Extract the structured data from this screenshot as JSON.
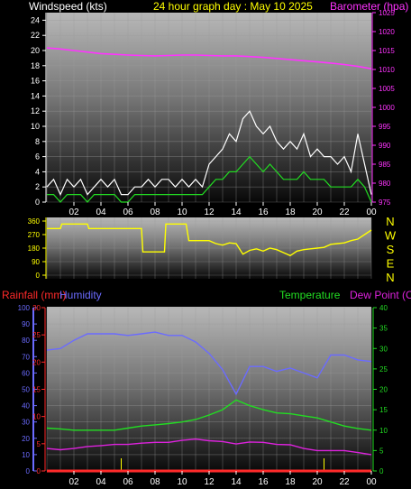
{
  "colors": {
    "wind_label": "#ffffff",
    "title": "#ffff00",
    "baro": "#ff33ff",
    "wind_dir": "#ffff00",
    "rain": "#ff2a2a",
    "humidity": "#6b6bff",
    "temperature": "#22dd22",
    "dewpoint": "#dd22dd",
    "gust": "#ffffff",
    "avg_wind": "#22dd22",
    "axis_left_wind": "#ffffff"
  },
  "header": {
    "wind_title": "Windspeed (kts)",
    "graph_title": "24 hour graph day : May 10 2025",
    "baro_title": "Barometer (hpa)"
  },
  "wind_dir_letters": [
    "N",
    "W",
    "S",
    "E",
    "N"
  ],
  "bottom_header": {
    "rain_title": "Rainfall (mm)",
    "humidity_title": "Humidity",
    "temp_title": "Temperature",
    "dew_title": "Dew Point (C)"
  },
  "chart_data": [
    {
      "type": "line",
      "title": "24 hour graph day : May 10 2025",
      "xlabel": "",
      "x_ticks": [
        "02",
        "04",
        "06",
        "08",
        "10",
        "12",
        "14",
        "16",
        "18",
        "20",
        "22",
        "00"
      ],
      "x_range_hours": [
        0,
        24
      ],
      "y_left": {
        "label": "Windspeed (kts)",
        "ylim": [
          0,
          25
        ],
        "ticks": [
          0,
          2,
          4,
          6,
          8,
          10,
          12,
          14,
          16,
          18,
          20,
          22,
          24
        ]
      },
      "y_right": {
        "label": "Barometer (hpa)",
        "ylim": [
          975,
          1025
        ],
        "ticks": [
          975,
          980,
          985,
          990,
          995,
          1000,
          1005,
          1010,
          1015,
          1020,
          1025
        ]
      },
      "grid": true,
      "series": [
        {
          "name": "Barometer (hpa)",
          "axis": "right",
          "color": "#ff33ff",
          "x": [
            0,
            1,
            2,
            3,
            4,
            5,
            6,
            7,
            8,
            9,
            10,
            11,
            12,
            13,
            14,
            15,
            16,
            17,
            18,
            19,
            20,
            21,
            22,
            23,
            24
          ],
          "values": [
            1015.7,
            1015.4,
            1015,
            1014.6,
            1014.2,
            1014,
            1013.8,
            1013.7,
            1013.6,
            1013.7,
            1013.8,
            1013.8,
            1013.7,
            1013.6,
            1013.6,
            1013.4,
            1013.2,
            1012.9,
            1012.6,
            1012.3,
            1012,
            1011.7,
            1011.3,
            1010.8,
            1010.2
          ]
        },
        {
          "name": "Gust",
          "axis": "left",
          "color": "#ffffff",
          "x": [
            0,
            0.5,
            1,
            1.5,
            2,
            2.5,
            3,
            3.5,
            4,
            4.5,
            5,
            5.5,
            6,
            6.5,
            7,
            7.5,
            8,
            8.5,
            9,
            9.5,
            10,
            10.5,
            11,
            11.5,
            12,
            12.5,
            13,
            13.5,
            14,
            14.5,
            15,
            15.5,
            16,
            16.5,
            17,
            17.5,
            18,
            18.5,
            19,
            19.5,
            20,
            20.5,
            21,
            21.5,
            22,
            22.5,
            23,
            23.5,
            24
          ],
          "values": [
            2,
            3,
            1,
            3,
            2,
            3,
            1,
            2,
            3,
            2,
            3,
            1,
            1,
            2,
            2,
            3,
            2,
            3,
            3,
            2,
            3,
            2,
            3,
            2,
            5,
            6,
            7,
            9,
            8,
            11,
            12,
            10,
            9,
            10,
            8,
            7,
            8,
            7,
            9,
            6,
            7,
            6,
            6,
            5,
            6,
            4,
            9,
            5,
            1
          ]
        },
        {
          "name": "Average Wind",
          "axis": "left",
          "color": "#22dd22",
          "x": [
            0,
            0.5,
            1,
            1.5,
            2,
            2.5,
            3,
            3.5,
            4,
            4.5,
            5,
            5.5,
            6,
            6.5,
            7,
            7.5,
            8,
            8.5,
            9,
            9.5,
            10,
            10.5,
            11,
            11.5,
            12,
            12.5,
            13,
            13.5,
            14,
            14.5,
            15,
            15.5,
            16,
            16.5,
            17,
            17.5,
            18,
            18.5,
            19,
            19.5,
            20,
            20.5,
            21,
            21.5,
            22,
            22.5,
            23,
            23.5,
            24
          ],
          "values": [
            1,
            1,
            0,
            1,
            1,
            1,
            0,
            1,
            1,
            1,
            1,
            0,
            0,
            1,
            1,
            1,
            1,
            1,
            1,
            1,
            1,
            1,
            1,
            1,
            2,
            3,
            3,
            4,
            4,
            5,
            6,
            5,
            4,
            5,
            4,
            3,
            3,
            3,
            4,
            3,
            3,
            3,
            2,
            2,
            2,
            2,
            3,
            2,
            0
          ]
        }
      ]
    },
    {
      "type": "line",
      "title": "",
      "x_range_hours": [
        0,
        24
      ],
      "y_left": {
        "label": "",
        "ylim": [
          0,
          360
        ],
        "ticks": [
          0,
          90,
          180,
          270,
          360
        ]
      },
      "y_right_letters": [
        "N",
        "W",
        "S",
        "E",
        "N"
      ],
      "grid": true,
      "series": [
        {
          "name": "Wind Direction",
          "color": "#ffff00",
          "x": [
            0,
            1,
            1.1,
            3,
            3.1,
            5,
            5.1,
            7,
            7.1,
            8.7,
            8.8,
            9.2,
            9.4,
            10.3,
            10.5,
            11.5,
            12,
            12.5,
            13,
            13.5,
            14,
            14.5,
            15,
            15.5,
            16,
            16.5,
            17,
            17.5,
            18,
            18.5,
            19,
            19.5,
            20,
            20.5,
            21,
            21.5,
            22,
            22.5,
            23,
            23.5,
            24
          ],
          "values": [
            310,
            310,
            340,
            340,
            310,
            310,
            310,
            310,
            155,
            155,
            340,
            340,
            340,
            340,
            230,
            230,
            230,
            210,
            200,
            215,
            210,
            140,
            165,
            175,
            160,
            180,
            170,
            150,
            130,
            160,
            170,
            175,
            180,
            185,
            205,
            210,
            215,
            230,
            240,
            270,
            300
          ]
        }
      ]
    },
    {
      "type": "line",
      "title": "",
      "x_ticks": [
        "02",
        "04",
        "06",
        "08",
        "10",
        "12",
        "14",
        "16",
        "18",
        "20",
        "22",
        "00"
      ],
      "x_range_hours": [
        0,
        24
      ],
      "y_rain": {
        "label": "Rainfall (mm)",
        "ylim": [
          0,
          30
        ],
        "ticks": [
          0,
          5,
          10,
          15,
          20,
          25,
          30
        ]
      },
      "y_humidity": {
        "label": "Humidity",
        "ylim": [
          0,
          100
        ],
        "ticks": [
          0,
          10,
          20,
          30,
          40,
          50,
          60,
          70,
          80,
          90,
          100
        ]
      },
      "y_temp": {
        "label": "Temperature / Dew Point (C)",
        "ylim": [
          0,
          40
        ],
        "ticks": [
          0,
          5,
          10,
          15,
          20,
          25,
          30,
          35,
          40
        ]
      },
      "grid": true,
      "series": [
        {
          "name": "Humidity",
          "axis": "humidity",
          "color": "#6b6bff",
          "x": [
            0,
            1,
            2,
            3,
            4,
            5,
            6,
            7,
            8,
            9,
            10,
            11,
            12,
            13,
            14,
            15,
            16,
            17,
            18,
            19,
            20,
            21,
            22,
            23,
            24
          ],
          "values": [
            74,
            75,
            80,
            84,
            84,
            84,
            83,
            84,
            85,
            83,
            83,
            79,
            72,
            62,
            47,
            64,
            64,
            61,
            63,
            60,
            57,
            71,
            71,
            68,
            67
          ]
        },
        {
          "name": "Temperature",
          "axis": "temp",
          "color": "#22dd22",
          "x": [
            0,
            1,
            2,
            3,
            4,
            5,
            6,
            7,
            8,
            9,
            10,
            11,
            12,
            13,
            14,
            15,
            16,
            17,
            18,
            19,
            20,
            21,
            22,
            23,
            24
          ],
          "values": [
            10.5,
            10.3,
            10,
            10,
            10,
            10,
            10.5,
            11,
            11.3,
            11.6,
            12,
            12.6,
            13.7,
            15,
            17.4,
            16,
            15,
            14.2,
            14,
            13.5,
            13,
            12,
            11,
            10.4,
            10
          ]
        },
        {
          "name": "Dew Point",
          "axis": "temp",
          "color": "#dd22dd",
          "x": [
            0,
            1,
            2,
            3,
            4,
            5,
            6,
            7,
            8,
            9,
            10,
            11,
            12,
            13,
            14,
            15,
            16,
            17,
            18,
            19,
            20,
            21,
            22,
            23,
            24
          ],
          "values": [
            5.5,
            5.2,
            5.5,
            6,
            6.2,
            6.5,
            6.5,
            6.8,
            7,
            7,
            7.5,
            7.8,
            7.4,
            7.2,
            6.6,
            7.1,
            7,
            6.5,
            6.4,
            5.5,
            5,
            5,
            5,
            4.5,
            4
          ]
        },
        {
          "name": "Rainfall",
          "axis": "rain",
          "color": "#ff2a2a",
          "x": [
            0,
            24
          ],
          "values": [
            0,
            0
          ]
        }
      ]
    }
  ]
}
